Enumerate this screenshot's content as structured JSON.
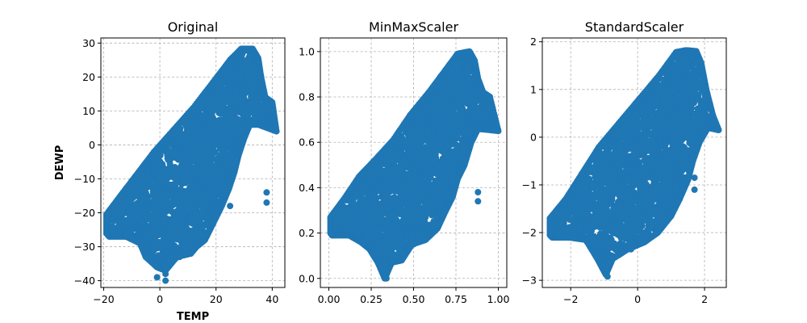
{
  "chart_data": [
    {
      "type": "scatter",
      "title": "Original",
      "xlabel": "TEMP",
      "ylabel": "DEWP",
      "xlim": [
        -21,
        44.5
      ],
      "ylim": [
        -42,
        31.5
      ],
      "xticks": [
        -20,
        0,
        20,
        40
      ],
      "yticks": [
        -40,
        -30,
        -20,
        -10,
        0,
        10,
        20,
        30
      ],
      "grid": true,
      "color": "#1f77b4",
      "envelope": [
        [
          -19,
          -26
        ],
        [
          -19,
          -20.5
        ],
        [
          -14,
          -15
        ],
        [
          -8,
          -8.5
        ],
        [
          -2,
          -2
        ],
        [
          5,
          4.5
        ],
        [
          12,
          11
        ],
        [
          19,
          18.5
        ],
        [
          25,
          25
        ],
        [
          29,
          28.3
        ],
        [
          33,
          28.3
        ],
        [
          35,
          25.5
        ],
        [
          36,
          20
        ],
        [
          37.5,
          14
        ],
        [
          40,
          12.5
        ],
        [
          41.5,
          4
        ],
        [
          35,
          6
        ],
        [
          32,
          6
        ],
        [
          30,
          2
        ],
        [
          28,
          -3
        ],
        [
          26.5,
          -8
        ],
        [
          24.5,
          -13
        ],
        [
          22,
          -18
        ],
        [
          19,
          -23
        ],
        [
          16,
          -28
        ],
        [
          13,
          -30
        ],
        [
          11,
          -32
        ],
        [
          6,
          -33
        ],
        [
          2,
          -37
        ],
        [
          -1,
          -36
        ],
        [
          -5,
          -33
        ],
        [
          -7,
          -29
        ],
        [
          -12,
          -27
        ],
        [
          -18,
          -27
        ]
      ],
      "outliers": [
        [
          25,
          -18
        ],
        [
          38,
          -14
        ],
        [
          38,
          -17
        ],
        [
          2,
          -38
        ],
        [
          2,
          -40
        ],
        [
          11,
          -29
        ],
        [
          7,
          -33
        ],
        [
          3,
          -34
        ],
        [
          -1,
          -39
        ]
      ]
    },
    {
      "type": "scatter",
      "title": "MinMaxScaler",
      "xlabel": "",
      "ylabel": "",
      "xlim": [
        -0.05,
        1.05
      ],
      "ylim": [
        -0.04,
        1.06
      ],
      "xticks": [
        "0.00",
        "0.25",
        "0.50",
        "0.75",
        "1.00"
      ],
      "yticks": [
        "0.0",
        "0.2",
        "0.4",
        "0.6",
        "0.8",
        "1.0"
      ],
      "grid": true,
      "color": "#1f77b4",
      "envelope": [
        [
          0.01,
          0.2
        ],
        [
          0.01,
          0.27
        ],
        [
          0.09,
          0.35
        ],
        [
          0.18,
          0.45
        ],
        [
          0.27,
          0.52
        ],
        [
          0.38,
          0.61
        ],
        [
          0.48,
          0.72
        ],
        [
          0.59,
          0.82
        ],
        [
          0.69,
          0.92
        ],
        [
          0.76,
          0.99
        ],
        [
          0.83,
          1.0
        ],
        [
          0.86,
          0.96
        ],
        [
          0.88,
          0.88
        ],
        [
          0.91,
          0.82
        ],
        [
          0.95,
          0.8
        ],
        [
          1.0,
          0.65
        ],
        [
          0.88,
          0.66
        ],
        [
          0.84,
          0.6
        ],
        [
          0.8,
          0.5
        ],
        [
          0.76,
          0.44
        ],
        [
          0.73,
          0.36
        ],
        [
          0.69,
          0.3
        ],
        [
          0.64,
          0.22
        ],
        [
          0.57,
          0.17
        ],
        [
          0.49,
          0.15
        ],
        [
          0.43,
          0.08
        ],
        [
          0.37,
          0.07
        ],
        [
          0.33,
          0.0
        ],
        [
          0.29,
          0.07
        ],
        [
          0.24,
          0.13
        ],
        [
          0.19,
          0.16
        ],
        [
          0.12,
          0.19
        ],
        [
          0.02,
          0.19
        ]
      ],
      "outliers": [
        [
          0.52,
          0.25
        ],
        [
          0.88,
          0.34
        ],
        [
          0.88,
          0.38
        ],
        [
          0.33,
          0.02
        ],
        [
          0.34,
          0.0
        ],
        [
          0.56,
          0.18
        ],
        [
          0.5,
          0.15
        ]
      ]
    },
    {
      "type": "scatter",
      "title": "StandardScaler",
      "xlabel": "",
      "ylabel": "",
      "xticks": [
        -2,
        0,
        2
      ],
      "yticks": [
        -3,
        -2,
        -1,
        0,
        1,
        2
      ],
      "xlim": [
        -2.85,
        2.65
      ],
      "ylim": [
        -3.15,
        2.08
      ],
      "grid": true,
      "color": "#1f77b4",
      "envelope": [
        [
          -2.62,
          -2.05
        ],
        [
          -2.62,
          -1.7
        ],
        [
          -2.15,
          -1.3
        ],
        [
          -1.65,
          -0.75
        ],
        [
          -1.15,
          -0.2
        ],
        [
          -0.55,
          0.3
        ],
        [
          0.05,
          0.8
        ],
        [
          0.65,
          1.3
        ],
        [
          1.15,
          1.78
        ],
        [
          1.45,
          1.82
        ],
        [
          1.75,
          1.8
        ],
        [
          1.9,
          1.55
        ],
        [
          2.05,
          1.0
        ],
        [
          2.25,
          0.45
        ],
        [
          2.42,
          0.15
        ],
        [
          2.1,
          0.2
        ],
        [
          1.85,
          -0.1
        ],
        [
          1.65,
          -0.5
        ],
        [
          1.5,
          -0.9
        ],
        [
          1.25,
          -1.3
        ],
        [
          1.0,
          -1.65
        ],
        [
          0.6,
          -2.0
        ],
        [
          0.2,
          -2.2
        ],
        [
          -0.3,
          -2.35
        ],
        [
          -0.75,
          -2.55
        ],
        [
          -0.95,
          -2.88
        ],
        [
          -1.2,
          -2.55
        ],
        [
          -1.55,
          -2.15
        ],
        [
          -2.05,
          -2.1
        ],
        [
          -2.55,
          -2.1
        ]
      ],
      "outliers": [
        [
          0.75,
          -1.25
        ],
        [
          1.7,
          -0.85
        ],
        [
          1.7,
          -1.1
        ],
        [
          -0.95,
          -2.75
        ],
        [
          -0.9,
          -2.92
        ],
        [
          0.25,
          -2.05
        ],
        [
          -0.2,
          -2.35
        ]
      ]
    }
  ]
}
